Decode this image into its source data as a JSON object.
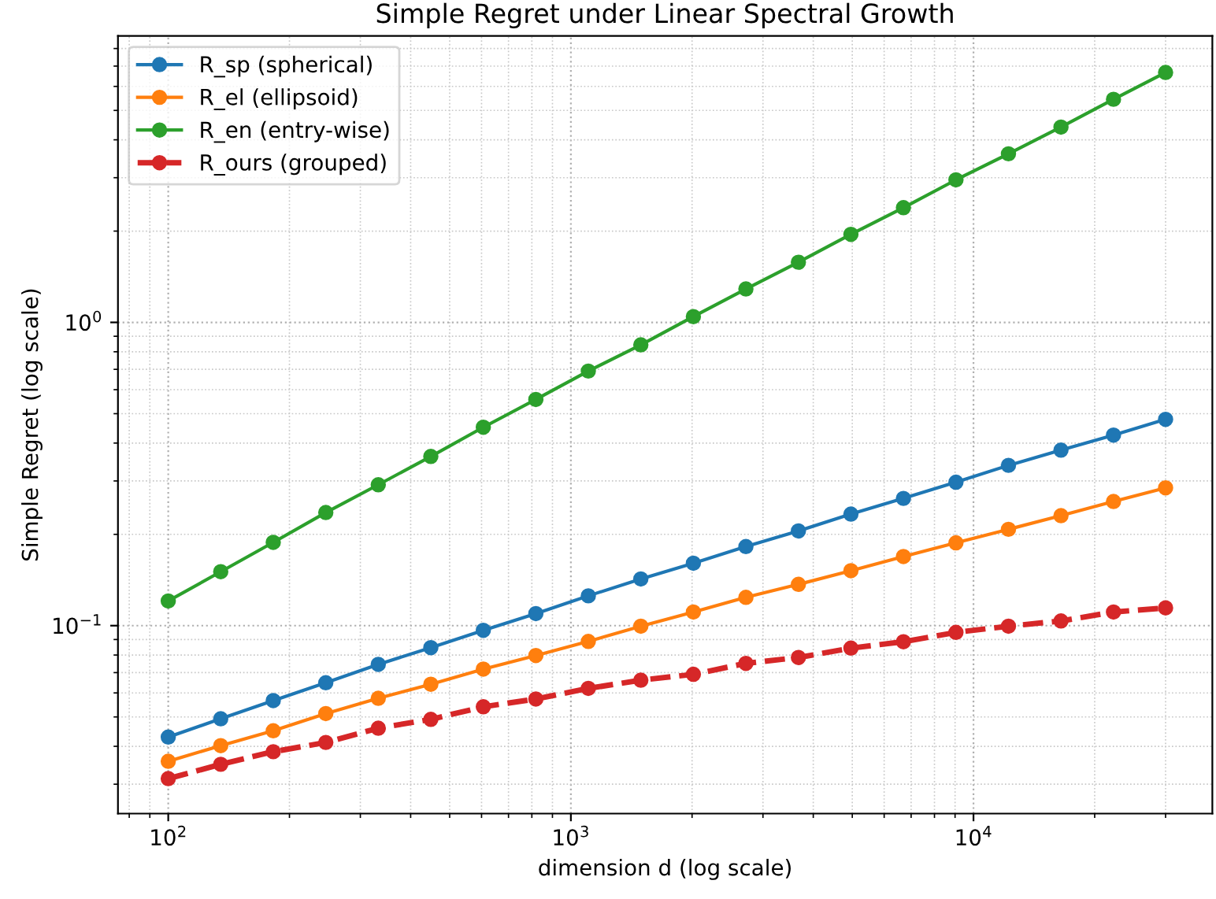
{
  "chart_data": {
    "type": "line",
    "title": "Simple Regret under Linear Spectral Growth",
    "xlabel": "dimension d (log scale)",
    "ylabel": "Simple Regret (log scale)",
    "x": [
      100,
      135.0,
      182.3,
      246.2,
      332.4,
      448.9,
      606.1,
      818.5,
      1105,
      1492,
      2015,
      2721,
      3674,
      4961,
      6699,
      9046,
      12215,
      16494,
      22272,
      30000
    ],
    "series": [
      {
        "name": "R_sp (spherical)",
        "color": "#1f77b4",
        "line_style": "solid",
        "values": [
          0.0429,
          0.0493,
          0.0566,
          0.0648,
          0.0745,
          0.0846,
          0.0965,
          0.1096,
          0.1254,
          0.1425,
          0.1606,
          0.1823,
          0.2053,
          0.2333,
          0.2628,
          0.2972,
          0.3377,
          0.3792,
          0.425,
          0.479
        ]
      },
      {
        "name": "R_el (ellipsoid)",
        "color": "#ff7f0e",
        "line_style": "solid",
        "values": [
          0.0357,
          0.0402,
          0.045,
          0.0513,
          0.0576,
          0.0641,
          0.0719,
          0.0797,
          0.0887,
          0.0996,
          0.1109,
          0.124,
          0.1368,
          0.1518,
          0.169,
          0.1875,
          0.2078,
          0.2305,
          0.2566,
          0.2847
        ]
      },
      {
        "name": "R_en (entry-wise)",
        "color": "#2ca02c",
        "line_style": "solid",
        "values": [
          0.1206,
          0.1506,
          0.1882,
          0.236,
          0.2915,
          0.3614,
          0.451,
          0.557,
          0.691,
          0.843,
          1.045,
          1.289,
          1.579,
          1.951,
          2.389,
          2.951,
          3.597,
          4.406,
          5.44,
          6.67
        ]
      },
      {
        "name": "R_ours (grouped)",
        "color": "#d62728",
        "line_style": "dashed",
        "values": [
          0.0313,
          0.0349,
          0.0384,
          0.0412,
          0.0459,
          0.0491,
          0.054,
          0.0573,
          0.0621,
          0.0661,
          0.0691,
          0.0751,
          0.0785,
          0.0843,
          0.0885,
          0.095,
          0.0996,
          0.1036,
          0.1109,
          0.1144
        ]
      }
    ],
    "log": "xy",
    "marker": "circle",
    "grid": true,
    "legend": "top left",
    "xlim": [
      75,
      39200
    ],
    "ylim": [
      0.024,
      8.8
    ],
    "xticks": [
      {
        "value": 80,
        "label": null
      },
      {
        "value": 90,
        "label": null
      },
      {
        "value": 100,
        "label": "10$^{2}$"
      },
      {
        "value": 200,
        "label": null
      },
      {
        "value": 300,
        "label": null
      },
      {
        "value": 400,
        "label": null
      },
      {
        "value": 500,
        "label": null
      },
      {
        "value": 600,
        "label": null
      },
      {
        "value": 700,
        "label": null
      },
      {
        "value": 800,
        "label": null
      },
      {
        "value": 900,
        "label": null
      },
      {
        "value": 1000,
        "label": "10$^{3}$"
      },
      {
        "value": 2000,
        "label": null
      },
      {
        "value": 3000,
        "label": null
      },
      {
        "value": 4000,
        "label": null
      },
      {
        "value": 5000,
        "label": null
      },
      {
        "value": 6000,
        "label": null
      },
      {
        "value": 7000,
        "label": null
      },
      {
        "value": 8000,
        "label": null
      },
      {
        "value": 9000,
        "label": null
      },
      {
        "value": 10000,
        "label": "10$^{4}$"
      },
      {
        "value": 20000,
        "label": null
      },
      {
        "value": 30000,
        "label": null
      }
    ],
    "yticks": [
      {
        "value": 0.03,
        "label": null
      },
      {
        "value": 0.04,
        "label": null
      },
      {
        "value": 0.05,
        "label": null
      },
      {
        "value": 0.06,
        "label": null
      },
      {
        "value": 0.07,
        "label": null
      },
      {
        "value": 0.08,
        "label": null
      },
      {
        "value": 0.09,
        "label": null
      },
      {
        "value": 0.1,
        "label": "10$^{−1}$"
      },
      {
        "value": 0.2,
        "label": null
      },
      {
        "value": 0.3,
        "label": null
      },
      {
        "value": 0.4,
        "label": null
      },
      {
        "value": 0.5,
        "label": null
      },
      {
        "value": 0.6,
        "label": null
      },
      {
        "value": 0.7,
        "label": null
      },
      {
        "value": 0.8,
        "label": null
      },
      {
        "value": 0.9,
        "label": null
      },
      {
        "value": 1,
        "label": "10$^{0}$"
      },
      {
        "value": 2,
        "label": null
      },
      {
        "value": 3,
        "label": null
      },
      {
        "value": 4,
        "label": null
      },
      {
        "value": 5,
        "label": null
      },
      {
        "value": 6,
        "label": null
      },
      {
        "value": 7,
        "label": null
      },
      {
        "value": 8,
        "label": null
      }
    ]
  }
}
